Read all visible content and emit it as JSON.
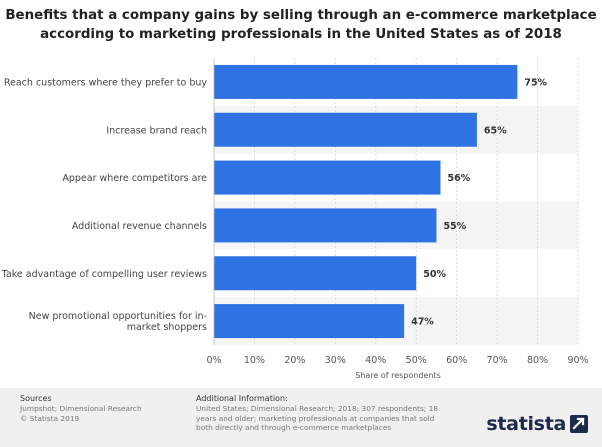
{
  "chart_data": {
    "type": "bar",
    "orientation": "horizontal",
    "title_lines": [
      "Benefits that a company gains by selling through an e-commerce marketplace",
      "according to marketing professionals in the United States as of 2018"
    ],
    "categories": [
      [
        "Reach customers where they prefer to buy"
      ],
      [
        "Increase brand reach"
      ],
      [
        "Appear where competitors are"
      ],
      [
        "Additional revenue channels"
      ],
      [
        "Take advantage of compelling user reviews"
      ],
      [
        "New promotional opportunities for in-",
        "market shoppers"
      ]
    ],
    "values": [
      75,
      65,
      56,
      55,
      50,
      47
    ],
    "value_labels": [
      "75%",
      "65%",
      "56%",
      "55%",
      "50%",
      "47%"
    ],
    "xlim": [
      0,
      90
    ],
    "x_ticks": [
      0,
      10,
      20,
      30,
      40,
      50,
      60,
      70,
      80,
      90
    ],
    "x_tick_labels": [
      "0%",
      "10%",
      "20%",
      "30%",
      "40%",
      "50%",
      "60%",
      "70%",
      "80%",
      "90%"
    ],
    "xlabel": "Share of respondents",
    "ylabel": "",
    "grid": true,
    "bar_color": "#2f72e4",
    "band_color": "#f5f5f5"
  },
  "footer": {
    "sources_heading": "Sources",
    "sources_lines": [
      "Jumpshot; Dimensional Research",
      "© Statista 2019"
    ],
    "info_heading": "Additional Information:",
    "info_lines": [
      "United States; Dimensional Research; 2018; 307 respondents; 18",
      "years and older; marketing professionals at companies that sold",
      "both directly and through e-commerce marketplaces"
    ],
    "logo_text": "statista",
    "logo_icon": "statista-arrow-icon",
    "background_color": "#f0f0f0"
  }
}
